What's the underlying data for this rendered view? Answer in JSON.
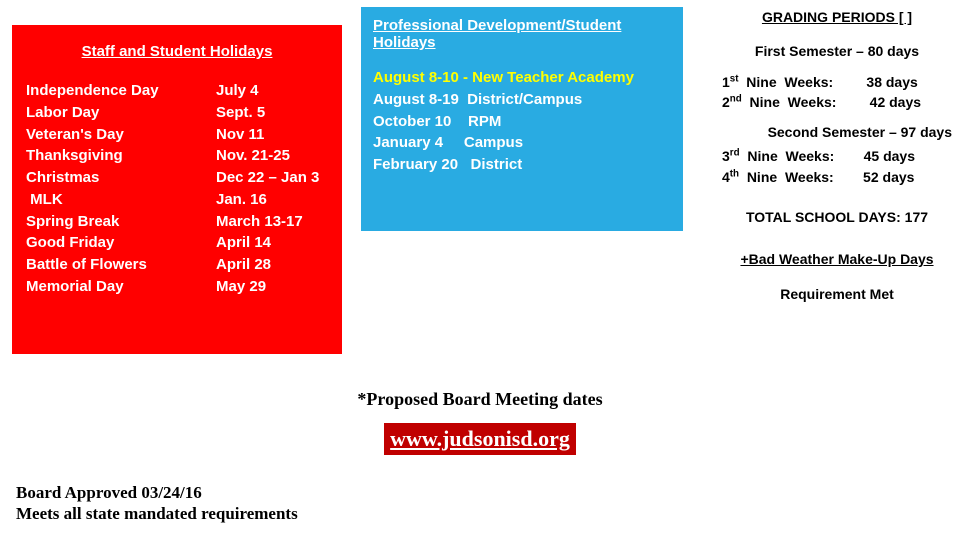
{
  "colors": {
    "red_box_bg": "#ff0000",
    "red_box_text": "#ffffff",
    "blue_box_bg": "#29abe2",
    "blue_box_text": "#ffffff",
    "blue_box_highlight": "#ffff00",
    "page_bg": "#ffffff",
    "link_bg": "#c00000",
    "link_text": "#ffffff",
    "body_text": "#000000"
  },
  "red": {
    "title": "Staff and Student Holidays",
    "rows": [
      {
        "label": "Independence Day",
        "date": "July 4"
      },
      {
        "label": "Labor Day",
        "date": "Sept. 5"
      },
      {
        "label": "Veteran's Day",
        "date": "Nov 11"
      },
      {
        "label": "Thanksgiving",
        "date": "Nov. 21-25"
      },
      {
        "label": "Christmas",
        "date": "Dec 22 – Jan 3"
      },
      {
        "label": " MLK",
        "date": "Jan. 16"
      },
      {
        "label": "Spring Break",
        "date": "March 13-17"
      },
      {
        "label": "Good Friday",
        "date": "April 14"
      },
      {
        "label": "Battle of Flowers",
        "date": "April 28"
      },
      {
        "label": "Memorial Day",
        "date": "May 29"
      }
    ]
  },
  "blue": {
    "title": "Professional Development/Student Holidays",
    "first": "August 8-10 - New Teacher Academy",
    "rows": [
      "August 8-19  District/Campus",
      "October 10    RPM",
      "January 4     Campus",
      "February 20   District"
    ]
  },
  "grading": {
    "title": "GRADING PERIODS [ ]",
    "sem1": "First Semester – 80 days",
    "rows1": [
      {
        "ord": "1",
        "suf": "st",
        "label": "  Nine  Weeks:",
        "days": "       38 days"
      },
      {
        "ord": "2",
        "suf": "nd",
        "label": "  Nine  Weeks:",
        "days": "       42 days"
      }
    ],
    "sem2": "Second Semester – 97 days",
    "rows2": [
      {
        "ord": "3",
        "suf": "rd",
        "label": "  Nine  Weeks:",
        "days": "      45 days"
      },
      {
        "ord": "4",
        "suf": "th",
        "label": "  Nine  Weeks:",
        "days": "      52 days"
      }
    ],
    "total": "TOTAL SCHOOL DAYS:  177",
    "bw_title": "+Bad Weather Make-Up Days",
    "bw_req": "Requirement Met"
  },
  "bottom": {
    "proposed": "*Proposed Board Meeting dates",
    "site": "www.judsonisd.org",
    "approved": "Board Approved 03/24/16",
    "mandated": "Meets all state mandated requirements"
  }
}
